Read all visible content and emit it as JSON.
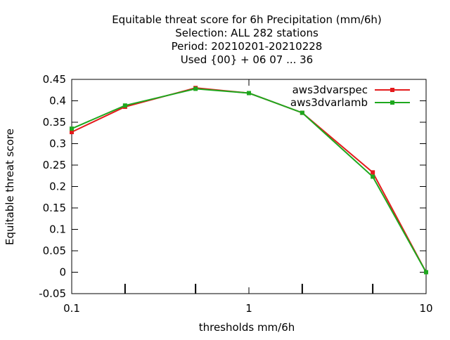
{
  "chart_data": {
    "type": "line",
    "title_lines": [
      "Equitable threat score  for 6h Precipitation (mm/6h)",
      "Selection: ALL    282 stations",
      "Period: 20210201-20210228",
      "Used {00} + 06 07 ... 36"
    ],
    "xlabel": "thresholds mm/6h",
    "ylabel": "Equitable threat score",
    "x_scale": "log",
    "xlim": [
      0.1,
      10
    ],
    "ylim": [
      -0.05,
      0.45
    ],
    "x_ticks": [
      0.1,
      1,
      10
    ],
    "x_tick_labels": [
      "0.1",
      "1",
      "10"
    ],
    "x_minor_ticks": [
      0.2,
      0.5,
      2,
      5
    ],
    "y_ticks": [
      -0.05,
      0,
      0.05,
      0.1,
      0.15,
      0.2,
      0.25,
      0.3,
      0.35,
      0.4,
      0.45
    ],
    "y_tick_labels": [
      "-0.05",
      "0",
      "0.05",
      "0.1",
      "0.15",
      "0.2",
      "0.25",
      "0.3",
      "0.35",
      "0.4",
      "0.45"
    ],
    "grid": false,
    "legend_position": "top-right",
    "x": [
      0.1,
      0.2,
      0.5,
      1,
      2,
      5,
      10
    ],
    "series": [
      {
        "name": "aws3dvarspec",
        "color": "#e41a1c",
        "values": [
          0.327,
          0.386,
          0.43,
          0.418,
          0.372,
          0.233,
          0.0
        ]
      },
      {
        "name": "aws3dvarlamb",
        "color": "#1ea81e",
        "values": [
          0.335,
          0.389,
          0.428,
          0.418,
          0.372,
          0.223,
          0.0
        ]
      }
    ]
  }
}
